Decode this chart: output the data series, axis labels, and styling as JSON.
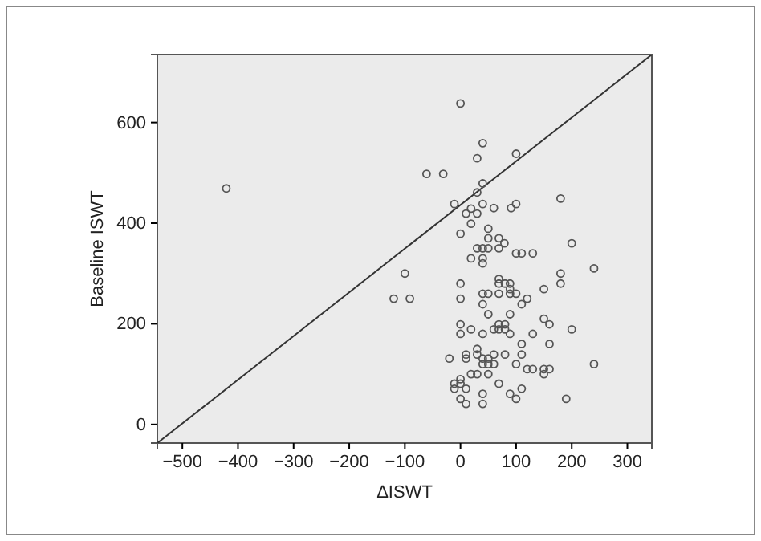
{
  "chart_data": {
    "type": "scatter",
    "xlabel": "ΔISWT",
    "ylabel": "Baseline ISWT",
    "xlim": [
      -545,
      344
    ],
    "ylim": [
      -37,
      735
    ],
    "xticks": [
      -500,
      -400,
      -300,
      -200,
      -100,
      0,
      100,
      200,
      300
    ],
    "yticks": [
      0,
      200,
      400,
      600
    ],
    "grid": false,
    "marker": "circle",
    "series": [
      {
        "type": "line",
        "marker": "none",
        "color": "#333333",
        "x": [
          -545,
          344
        ],
        "values": [
          -37,
          735
        ]
      },
      {
        "color": "#555555",
        "x": [
          0,
          40,
          30,
          100,
          -61,
          -31,
          40,
          -421,
          30,
          -11,
          60,
          40,
          91,
          100,
          180,
          10,
          19,
          30,
          19,
          50,
          0,
          50,
          69,
          79,
          19,
          40,
          40,
          200,
          180,
          180,
          240,
          -100,
          -120,
          -91,
          0,
          0,
          40,
          50,
          69,
          69,
          80,
          89,
          89,
          89,
          100,
          69,
          40,
          120,
          110,
          150,
          50,
          89,
          150,
          160,
          0,
          0,
          19,
          40,
          60,
          69,
          80,
          89,
          69,
          80,
          130,
          200,
          110,
          160,
          -20,
          10,
          10,
          30,
          30,
          40,
          50,
          60,
          40,
          50,
          60,
          80,
          110,
          100,
          120,
          130,
          150,
          150,
          160,
          240,
          19,
          30,
          50,
          0,
          -11,
          -11,
          0,
          10,
          69,
          110,
          40,
          89,
          100,
          0,
          10,
          40,
          190,
          30,
          40,
          50,
          69,
          100,
          110,
          130
        ],
        "values": [
          638,
          559,
          529,
          538,
          498,
          498,
          479,
          469,
          461,
          438,
          430,
          438,
          430,
          438,
          449,
          419,
          429,
          419,
          399,
          389,
          379,
          370,
          370,
          360,
          330,
          330,
          320,
          360,
          300,
          280,
          310,
          300,
          250,
          250,
          280,
          250,
          260,
          260,
          289,
          280,
          280,
          280,
          269,
          260,
          260,
          260,
          239,
          250,
          239,
          269,
          219,
          219,
          210,
          199,
          199,
          180,
          189,
          180,
          189,
          189,
          189,
          180,
          199,
          199,
          180,
          189,
          160,
          160,
          131,
          139,
          131,
          150,
          139,
          131,
          131,
          139,
          120,
          120,
          120,
          139,
          139,
          120,
          110,
          110,
          110,
          100,
          110,
          120,
          100,
          100,
          100,
          90,
          81,
          71,
          81,
          71,
          81,
          71,
          61,
          61,
          51,
          51,
          41,
          41,
          51,
          350,
          350,
          350,
          350,
          340,
          340,
          340
        ]
      }
    ]
  }
}
